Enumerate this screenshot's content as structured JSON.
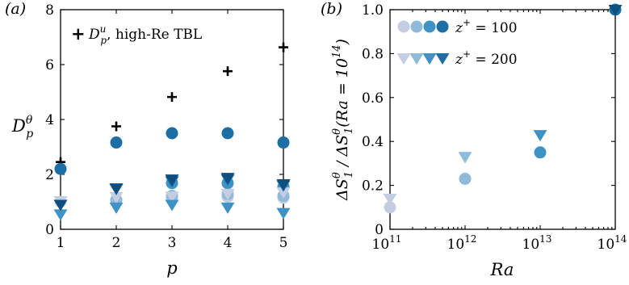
{
  "chart_data": [
    {
      "type": "scatter",
      "panel_label": "(a)",
      "xlabel": "p",
      "ylabel": "D",
      "ylabel_sup": "θ",
      "ylabel_sub": "p",
      "xlim": [
        1,
        5
      ],
      "ylim": [
        0,
        8
      ],
      "xticks": [
        "1",
        "2",
        "3",
        "4",
        "5"
      ],
      "yticks": [
        "0",
        "2",
        "4",
        "6",
        "8"
      ],
      "legend": {
        "placement": "top-left",
        "symbol": "+",
        "text_main": "D",
        "text_sup": "u",
        "text_sub": "p",
        "text_rest": ", high-Re TBL"
      },
      "colors": [
        "#c4cde2",
        "#8fbad9",
        "#3f93c4",
        "#1c6fa5",
        "#0d4f7e"
      ],
      "series": [
        {
          "marker": "plus",
          "color": "#000000",
          "points": [
            [
              1,
              2.45
            ],
            [
              2,
              3.75
            ],
            [
              3,
              4.82
            ],
            [
              4,
              5.76
            ],
            [
              5,
              6.63
            ]
          ]
        },
        {
          "marker": "circle",
          "color": "#c4cde2",
          "points": [
            [
              1,
              1.0
            ],
            [
              2,
              1.05
            ],
            [
              3,
              1.12
            ],
            [
              4,
              1.18
            ],
            [
              5,
              1.15
            ]
          ]
        },
        {
          "marker": "circle",
          "color": "#8fbad9",
          "points": [
            [
              2,
              1.07
            ],
            [
              3,
              1.22
            ],
            [
              4,
              1.28
            ],
            [
              5,
              1.22
            ]
          ]
        },
        {
          "marker": "circle",
          "color": "#3f93c4",
          "points": [
            [
              3,
              1.68
            ],
            [
              4,
              1.68
            ],
            [
              5,
              1.55
            ]
          ]
        },
        {
          "marker": "circle",
          "color": "#1c6fa5",
          "points": [
            [
              1,
              2.2
            ],
            [
              2,
              3.16
            ],
            [
              3,
              3.5
            ],
            [
              4,
              3.5
            ],
            [
              5,
              3.16
            ]
          ]
        },
        {
          "marker": "triangle",
          "color": "#c4cde2",
          "points": [
            [
              1,
              1.03
            ],
            [
              2,
              1.18
            ],
            [
              3,
              1.2
            ],
            [
              4,
              1.3
            ],
            [
              5,
              1.35
            ]
          ]
        },
        {
          "marker": "triangle",
          "color": "#3f93c4",
          "points": [
            [
              1,
              0.55
            ],
            [
              2,
              0.8
            ],
            [
              3,
              0.9
            ],
            [
              4,
              0.8
            ],
            [
              5,
              0.6
            ]
          ]
        },
        {
          "marker": "triangle",
          "color": "#1c6fa5",
          "points": [
            [
              2,
              1.5
            ],
            [
              3,
              1.75
            ],
            [
              4,
              1.82
            ],
            [
              5,
              1.6
            ]
          ]
        },
        {
          "marker": "triangle",
          "color": "#0d4f7e",
          "points": [
            [
              1,
              0.9
            ],
            [
              2,
              1.48
            ],
            [
              3,
              1.82
            ],
            [
              4,
              1.88
            ],
            [
              5,
              1.65
            ]
          ]
        }
      ]
    },
    {
      "type": "scatter",
      "panel_label": "(b)",
      "xlabel": "Ra",
      "ylabel": "ΔS₁^θ / ΔS₁^θ(Ra = 10^14)",
      "ylabel_parts": {
        "d": "Δ",
        "s": "S",
        "sup": "θ",
        "sub": "1",
        "slash": " / ",
        "ra": "Ra",
        "eq": " = 10",
        "exp": "14",
        "close": ")",
        "open": "("
      },
      "xscale": "log",
      "xlim": [
        100000000000,
        100000000000000
      ],
      "ylim": [
        0,
        1
      ],
      "xticks": [
        {
          "base": "10",
          "exp": "11"
        },
        {
          "base": "10",
          "exp": "12"
        },
        {
          "base": "10",
          "exp": "13"
        },
        {
          "base": "10",
          "exp": "14"
        }
      ],
      "yticks": [
        "0",
        "0.2",
        "0.4",
        "0.6",
        "0.8",
        "1.0"
      ],
      "legend": {
        "placement": "top-left",
        "entries": [
          {
            "marker": "circle",
            "colors": [
              "#c4cde2",
              "#8fbad9",
              "#3f93c4",
              "#1c6fa5"
            ],
            "main": "z",
            "sup": "+",
            "rest": " = 100"
          },
          {
            "marker": "triangle",
            "colors": [
              "#c4cde2",
              "#8fbad9",
              "#3f93c4",
              "#1c6fa5"
            ],
            "main": "z",
            "sup": "+",
            "rest": " = 200"
          }
        ]
      },
      "series": [
        {
          "name": "z+ = 100",
          "marker": "circle",
          "points": [
            {
              "x": 100000000000,
              "y": 0.1,
              "color": "#c4cde2"
            },
            {
              "x": 1000000000000,
              "y": 0.23,
              "color": "#8fbad9"
            },
            {
              "x": 10000000000000,
              "y": 0.35,
              "color": "#3f93c4"
            },
            {
              "x": 100000000000000,
              "y": 1.0,
              "color": "#1c6fa5"
            }
          ]
        },
        {
          "name": "z+ = 200",
          "marker": "triangle",
          "points": [
            {
              "x": 100000000000,
              "y": 0.14,
              "color": "#c4cde2"
            },
            {
              "x": 1000000000000,
              "y": 0.33,
              "color": "#8fbad9"
            },
            {
              "x": 10000000000000,
              "y": 0.43,
              "color": "#3f93c4"
            },
            {
              "x": 100000000000000,
              "y": 1.0,
              "color": "#0d4f7e"
            }
          ]
        }
      ]
    }
  ]
}
